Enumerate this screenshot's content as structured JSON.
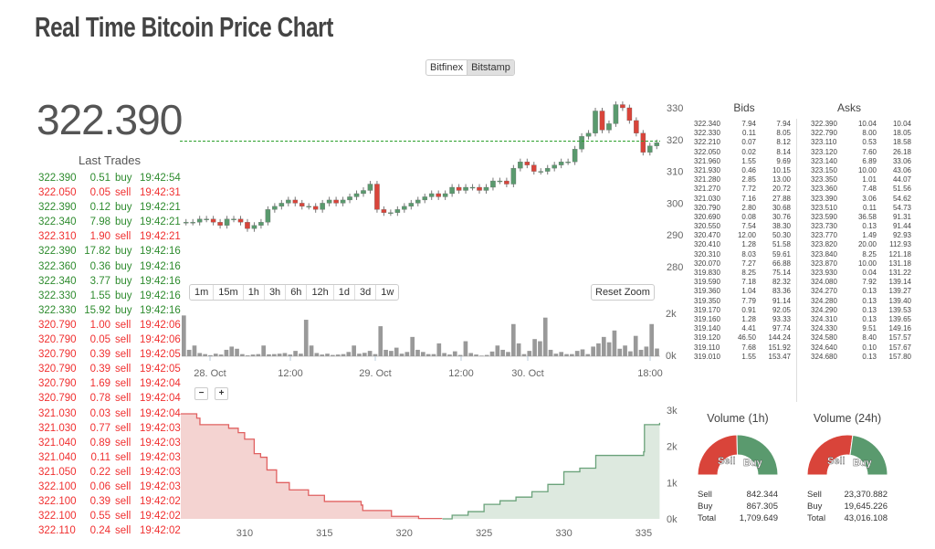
{
  "header": {
    "title": "Real Time Bitcoin Price Chart"
  },
  "exchanges": [
    {
      "label": "Bitfinex",
      "active": false
    },
    {
      "label": "Bitstamp",
      "active": true
    }
  ],
  "current_price": "322.390",
  "last_trades": {
    "title": "Last Trades",
    "rows": [
      [
        "322.390",
        "0.51",
        "buy",
        "19:42:54"
      ],
      [
        "322.050",
        "0.05",
        "sell",
        "19:42:31"
      ],
      [
        "322.390",
        "0.12",
        "buy",
        "19:42:21"
      ],
      [
        "322.340",
        "7.98",
        "buy",
        "19:42:21"
      ],
      [
        "322.310",
        "1.90",
        "sell",
        "19:42:21"
      ],
      [
        "322.390",
        "17.82",
        "buy",
        "19:42:16"
      ],
      [
        "322.360",
        "0.36",
        "buy",
        "19:42:16"
      ],
      [
        "322.340",
        "3.77",
        "buy",
        "19:42:16"
      ],
      [
        "322.330",
        "1.55",
        "buy",
        "19:42:16"
      ],
      [
        "322.330",
        "15.92",
        "buy",
        "19:42:16"
      ],
      [
        "320.790",
        "1.00",
        "sell",
        "19:42:06"
      ],
      [
        "320.790",
        "0.05",
        "sell",
        "19:42:06"
      ],
      [
        "320.790",
        "0.39",
        "sell",
        "19:42:05"
      ],
      [
        "320.790",
        "0.39",
        "sell",
        "19:42:05"
      ],
      [
        "320.790",
        "1.69",
        "sell",
        "19:42:04"
      ],
      [
        "320.790",
        "0.78",
        "sell",
        "19:42:04"
      ],
      [
        "321.030",
        "0.03",
        "sell",
        "19:42:04"
      ],
      [
        "321.030",
        "0.77",
        "sell",
        "19:42:03"
      ],
      [
        "321.040",
        "0.89",
        "sell",
        "19:42:03"
      ],
      [
        "321.040",
        "0.11",
        "sell",
        "19:42:03"
      ],
      [
        "321.050",
        "0.22",
        "sell",
        "19:42:03"
      ],
      [
        "322.100",
        "0.06",
        "sell",
        "19:42:03"
      ],
      [
        "322.100",
        "0.39",
        "sell",
        "19:42:02"
      ],
      [
        "322.100",
        "0.55",
        "sell",
        "19:42:02"
      ],
      [
        "322.110",
        "0.24",
        "sell",
        "19:42:02"
      ]
    ]
  },
  "range_buttons": [
    "1m",
    "15m",
    "1h",
    "3h",
    "6h",
    "12h",
    "1d",
    "3d",
    "1w"
  ],
  "reset_zoom": "Reset Zoom",
  "zoom_out": "−",
  "zoom_in": "+",
  "colors": {
    "up": "#5a9a6e",
    "down": "#d9443a",
    "last_line": "#2ca02c",
    "bid_fill": "#f4d3d1",
    "bid_line": "#e06060",
    "ask_fill": "#dde9df",
    "ask_line": "#6aa27a",
    "volume": "#999999"
  },
  "chart_data": [
    {
      "type": "candlestick",
      "yticks": [
        280,
        290,
        300,
        310,
        320,
        330
      ],
      "ylim": [
        278,
        333
      ],
      "last_line": 319.5,
      "closes": [
        294,
        294,
        295,
        295,
        294,
        293,
        295,
        295,
        294,
        292,
        293,
        294,
        298,
        299,
        300,
        301,
        300,
        299,
        299,
        298,
        300,
        301,
        300,
        301,
        302,
        303,
        304,
        306,
        298,
        297,
        297,
        298,
        299,
        300,
        301,
        302,
        303,
        302,
        303,
        305,
        304,
        305,
        305,
        304,
        305,
        307,
        307,
        306,
        311,
        313,
        312,
        310,
        310,
        311,
        312,
        313,
        313,
        317,
        321,
        322,
        329,
        323,
        325,
        331,
        330,
        326,
        322,
        316,
        318,
        319
      ]
    },
    {
      "type": "bar",
      "yticks": [
        "0k",
        "2k"
      ],
      "ylim": [
        0,
        2000
      ],
      "xticks": [
        "28. Oct",
        "12:00",
        "29. Oct",
        "12:00",
        "30. Oct",
        "18:00"
      ],
      "values": [
        1900,
        300,
        500,
        150,
        100,
        50,
        120,
        80,
        300,
        450,
        350,
        100,
        40,
        80,
        100,
        500,
        90,
        100,
        120,
        150,
        80,
        250,
        120,
        1700,
        500,
        150,
        80,
        120,
        60,
        80,
        100,
        200,
        500,
        120,
        160,
        250,
        100,
        1400,
        300,
        250,
        400,
        120,
        200,
        900,
        300,
        200,
        100,
        100,
        600,
        150,
        80,
        230,
        60,
        700,
        150,
        80,
        30,
        60,
        220,
        500,
        300,
        200,
        1500,
        600,
        100,
        250,
        800,
        700,
        1800,
        300,
        120,
        200,
        100,
        100,
        250,
        320,
        100,
        450,
        600,
        900,
        650,
        1200,
        350,
        500,
        230,
        950,
        300,
        450,
        1500,
        360
      ]
    },
    {
      "type": "area",
      "xticks": [
        310,
        315,
        320,
        325,
        330,
        335
      ],
      "yticks": [
        "0k",
        "1k",
        "2k",
        "3k"
      ],
      "xlim": [
        306,
        336
      ],
      "ylim": [
        0,
        3000
      ],
      "bids": [
        [
          306,
          2900
        ],
        [
          307,
          2780
        ],
        [
          307.2,
          2600
        ],
        [
          309,
          2500
        ],
        [
          309.6,
          2380
        ],
        [
          310,
          2200
        ],
        [
          310.6,
          1800
        ],
        [
          311,
          1700
        ],
        [
          311.4,
          1350
        ],
        [
          312,
          1000
        ],
        [
          312.8,
          800
        ],
        [
          314,
          650
        ],
        [
          315,
          480
        ],
        [
          317.3,
          380
        ],
        [
          317.4,
          230
        ],
        [
          319.2,
          70
        ],
        [
          320.9,
          10
        ],
        [
          322.34,
          0
        ]
      ],
      "asks": [
        [
          322.39,
          0
        ],
        [
          323,
          100
        ],
        [
          324,
          200
        ],
        [
          325,
          400
        ],
        [
          326,
          500
        ],
        [
          327,
          600
        ],
        [
          328,
          750
        ],
        [
          329,
          950
        ],
        [
          330,
          1300
        ],
        [
          331,
          1400
        ],
        [
          332,
          1750
        ],
        [
          335,
          1850
        ],
        [
          335.05,
          2600
        ],
        [
          336,
          2650
        ]
      ]
    }
  ],
  "order_book": {
    "bids_title": "Bids",
    "asks_title": "Asks",
    "bids": [
      [
        "322.340",
        "7.94",
        "7.94"
      ],
      [
        "322.330",
        "0.11",
        "8.05"
      ],
      [
        "322.210",
        "0.07",
        "8.12"
      ],
      [
        "322.050",
        "0.02",
        "8.14"
      ],
      [
        "321.960",
        "1.55",
        "9.69"
      ],
      [
        "321.930",
        "0.46",
        "10.15"
      ],
      [
        "321.280",
        "2.85",
        "13.00"
      ],
      [
        "321.270",
        "7.72",
        "20.72"
      ],
      [
        "321.030",
        "7.16",
        "27.88"
      ],
      [
        "320.790",
        "2.80",
        "30.68"
      ],
      [
        "320.690",
        "0.08",
        "30.76"
      ],
      [
        "320.550",
        "7.54",
        "38.30"
      ],
      [
        "320.470",
        "12.00",
        "50.30"
      ],
      [
        "320.410",
        "1.28",
        "51.58"
      ],
      [
        "320.310",
        "8.03",
        "59.61"
      ],
      [
        "320.070",
        "7.27",
        "66.88"
      ],
      [
        "319.830",
        "8.25",
        "75.14"
      ],
      [
        "319.590",
        "7.18",
        "82.32"
      ],
      [
        "319.360",
        "1.04",
        "83.36"
      ],
      [
        "319.350",
        "7.79",
        "91.14"
      ],
      [
        "319.170",
        "0.91",
        "92.05"
      ],
      [
        "319.160",
        "1.28",
        "93.33"
      ],
      [
        "319.140",
        "4.41",
        "97.74"
      ],
      [
        "319.120",
        "46.50",
        "144.24"
      ],
      [
        "319.110",
        "7.68",
        "151.92"
      ],
      [
        "319.010",
        "1.55",
        "153.47"
      ]
    ],
    "asks": [
      [
        "322.390",
        "10.04",
        "10.04"
      ],
      [
        "322.790",
        "8.00",
        "18.05"
      ],
      [
        "323.110",
        "0.53",
        "18.58"
      ],
      [
        "323.120",
        "7.60",
        "26.18"
      ],
      [
        "323.140",
        "6.89",
        "33.06"
      ],
      [
        "323.150",
        "10.00",
        "43.06"
      ],
      [
        "323.350",
        "1.01",
        "44.07"
      ],
      [
        "323.360",
        "7.48",
        "51.56"
      ],
      [
        "323.390",
        "3.06",
        "54.62"
      ],
      [
        "323.510",
        "0.11",
        "54.73"
      ],
      [
        "323.590",
        "36.58",
        "91.31"
      ],
      [
        "323.730",
        "0.13",
        "91.44"
      ],
      [
        "323.770",
        "1.49",
        "92.93"
      ],
      [
        "323.820",
        "20.00",
        "112.93"
      ],
      [
        "323.840",
        "8.25",
        "121.18"
      ],
      [
        "323.870",
        "10.00",
        "131.18"
      ],
      [
        "323.930",
        "0.04",
        "131.22"
      ],
      [
        "324.080",
        "7.92",
        "139.14"
      ],
      [
        "324.270",
        "0.13",
        "139.27"
      ],
      [
        "324.280",
        "0.13",
        "139.40"
      ],
      [
        "324.290",
        "0.13",
        "139.53"
      ],
      [
        "324.310",
        "0.13",
        "139.65"
      ],
      [
        "324.330",
        "9.51",
        "149.16"
      ],
      [
        "324.580",
        "8.40",
        "157.57"
      ],
      [
        "324.640",
        "0.10",
        "157.67"
      ],
      [
        "324.680",
        "0.13",
        "157.80"
      ]
    ]
  },
  "volume": [
    {
      "title": "Volume (1h)",
      "sell_label": "Sell",
      "buy_label": "Buy",
      "total_label": "Total",
      "sell": "842.344",
      "buy": "867.305",
      "total": "1,709.649",
      "sell_fraction": 0.493
    },
    {
      "title": "Volume (24h)",
      "sell_label": "Sell",
      "buy_label": "Buy",
      "total_label": "Total",
      "sell": "23,370.882",
      "buy": "19,645.226",
      "total": "43,016.108",
      "sell_fraction": 0.543
    }
  ]
}
